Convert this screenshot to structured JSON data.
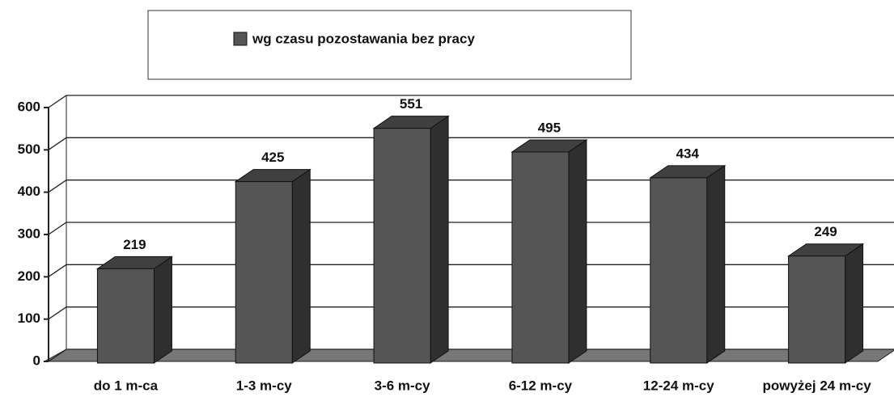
{
  "chart_data": {
    "type": "bar",
    "legend": "wg czasu pozostawania bez pracy",
    "categories": [
      "do 1 m-ca",
      "1-3 m-cy",
      "3-6 m-cy",
      "6-12 m-cy",
      "12-24 m-cy",
      "powyżej 24 m-cy"
    ],
    "values": [
      219,
      425,
      551,
      495,
      434,
      249
    ],
    "color": "#555555",
    "ylim": [
      0,
      600
    ],
    "yticks": [
      0,
      100,
      200,
      300,
      400,
      500,
      600
    ],
    "grid": true
  }
}
